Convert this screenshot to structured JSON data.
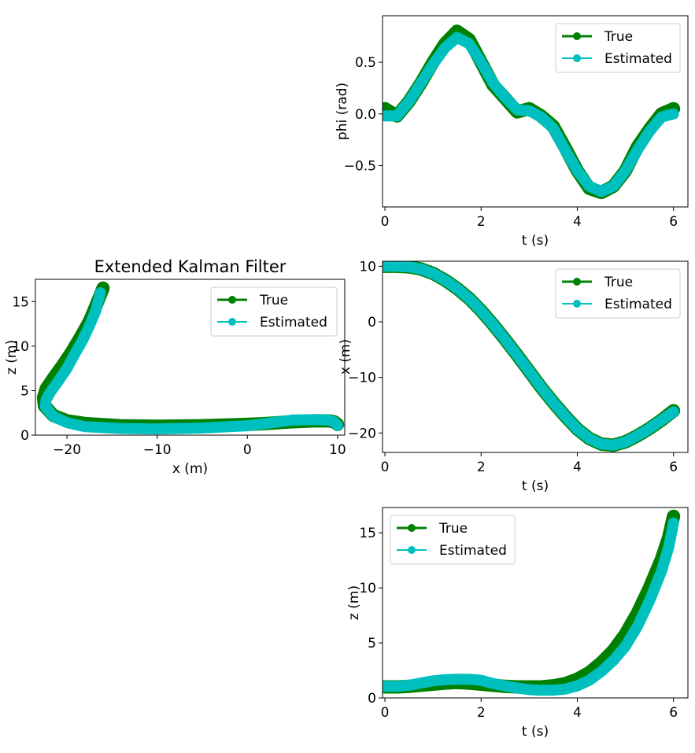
{
  "chart_data": [
    {
      "id": "trajectory",
      "type": "line",
      "title": "Extended Kalman Filter",
      "xlabel": "x (m)",
      "ylabel": "z (m)",
      "xlim": [
        -23.5,
        10.8
      ],
      "ylim": [
        0,
        17.5
      ],
      "xticks": [
        -20,
        -10,
        0,
        10
      ],
      "xtick_labels": [
        "−20",
        "−10",
        "0",
        "10"
      ],
      "yticks": [
        0,
        5,
        10,
        15
      ],
      "ytick_labels": [
        "0",
        "5",
        "10",
        "15"
      ],
      "legend": "top-right",
      "series": [
        {
          "name": "True",
          "color": "#008000",
          "x": [
            10,
            9.6,
            9,
            7.5,
            5,
            2,
            0,
            -5,
            -10,
            -14,
            -18,
            -20,
            -21.5,
            -22.5,
            -22.6,
            -22.3,
            -21.5,
            -20.5,
            -19.5,
            -18.5,
            -17.5,
            -16.8,
            -16
          ],
          "y": [
            1.2,
            1.5,
            1.6,
            1.6,
            1.5,
            1.3,
            1.2,
            1.05,
            1.0,
            1.05,
            1.3,
            1.6,
            2.2,
            3.3,
            4.2,
            5.2,
            6.4,
            7.8,
            9.3,
            11.0,
            12.8,
            14.5,
            16.5
          ]
        },
        {
          "name": "Estimated",
          "color": "#00bfbf",
          "x": [
            10,
            9.6,
            9,
            7.5,
            5,
            2,
            0,
            -5,
            -10,
            -14,
            -18,
            -20,
            -21.5,
            -22.4,
            -22.3,
            -21.8,
            -21.0,
            -20.0,
            -19.2,
            -18.3,
            -17.5,
            -16.8,
            -16.3
          ],
          "y": [
            1.1,
            1.5,
            1.7,
            1.75,
            1.7,
            1.3,
            1.05,
            0.8,
            0.7,
            0.75,
            0.95,
            1.4,
            2.1,
            3.2,
            4.0,
            4.9,
            6.0,
            7.5,
            9.0,
            10.6,
            12.3,
            14.0,
            16.0
          ]
        }
      ]
    },
    {
      "id": "phi",
      "type": "line",
      "title": "",
      "xlabel": "t (s)",
      "ylabel": "phi (rad)",
      "xlim": [
        -0.05,
        6.3
      ],
      "ylim": [
        -0.9,
        0.95
      ],
      "xticks": [
        0,
        2,
        4,
        6
      ],
      "xtick_labels": [
        "0",
        "2",
        "4",
        "6"
      ],
      "yticks": [
        -0.5,
        0,
        0.5
      ],
      "ytick_labels": [
        "−0.5",
        "0.0",
        "0.5"
      ],
      "legend": "top-right",
      "series": [
        {
          "name": "True",
          "color": "#008000",
          "x": [
            0,
            0.25,
            0.5,
            0.75,
            1,
            1.25,
            1.5,
            1.75,
            2,
            2.25,
            2.5,
            2.75,
            3,
            3.25,
            3.5,
            3.75,
            4,
            4.25,
            4.5,
            4.75,
            5,
            5.25,
            5.5,
            5.75,
            6
          ],
          "y": [
            0.05,
            -0.02,
            0.12,
            0.3,
            0.5,
            0.68,
            0.8,
            0.72,
            0.5,
            0.28,
            0.15,
            0.02,
            0.05,
            -0.02,
            -0.12,
            -0.33,
            -0.55,
            -0.72,
            -0.76,
            -0.7,
            -0.55,
            -0.32,
            -0.15,
            0.0,
            0.05
          ]
        },
        {
          "name": "Estimated",
          "color": "#00bfbf",
          "x": [
            0,
            0.25,
            0.5,
            0.75,
            1,
            1.25,
            1.5,
            1.75,
            2,
            2.25,
            2.5,
            2.75,
            3,
            3.25,
            3.5,
            3.75,
            4,
            4.25,
            4.5,
            4.75,
            5,
            5.25,
            5.5,
            5.75,
            6
          ],
          "y": [
            -0.02,
            -0.02,
            0.12,
            0.3,
            0.48,
            0.64,
            0.74,
            0.68,
            0.5,
            0.3,
            0.16,
            0.04,
            0.03,
            -0.03,
            -0.14,
            -0.35,
            -0.55,
            -0.7,
            -0.75,
            -0.7,
            -0.55,
            -0.35,
            -0.17,
            -0.03,
            0.0
          ]
        }
      ]
    },
    {
      "id": "x",
      "type": "line",
      "title": "",
      "xlabel": "t (s)",
      "ylabel": "x (m)",
      "xlim": [
        -0.05,
        6.3
      ],
      "ylim": [
        -23.5,
        10.9
      ],
      "xticks": [
        0,
        2,
        4,
        6
      ],
      "xtick_labels": [
        "0",
        "2",
        "4",
        "6"
      ],
      "yticks": [
        -20,
        -10,
        0,
        10
      ],
      "ytick_labels": [
        "−20",
        "−10",
        "0",
        "10"
      ],
      "legend": "top-right",
      "series": [
        {
          "name": "True",
          "color": "#008000",
          "x": [
            0,
            0.25,
            0.5,
            0.75,
            1,
            1.25,
            1.5,
            1.75,
            2,
            2.25,
            2.5,
            2.75,
            3,
            3.25,
            3.5,
            3.75,
            4,
            4.25,
            4.5,
            4.75,
            5,
            5.25,
            5.5,
            5.75,
            6
          ],
          "y": [
            10,
            10,
            9.9,
            9.5,
            8.7,
            7.5,
            6.0,
            4.2,
            2.0,
            -0.5,
            -3.2,
            -6.0,
            -8.9,
            -11.8,
            -14.5,
            -17.0,
            -19.3,
            -21.0,
            -22.0,
            -22.2,
            -21.6,
            -20.5,
            -19.2,
            -17.7,
            -16.0
          ]
        },
        {
          "name": "Estimated",
          "color": "#00bfbf",
          "x": [
            0,
            0.25,
            0.5,
            0.75,
            1,
            1.25,
            1.5,
            1.75,
            2,
            2.25,
            2.5,
            2.75,
            3,
            3.25,
            3.5,
            3.75,
            4,
            4.25,
            4.5,
            4.75,
            5,
            5.25,
            5.5,
            5.75,
            6
          ],
          "y": [
            10,
            10,
            9.9,
            9.5,
            8.7,
            7.5,
            6.0,
            4.2,
            2.0,
            -0.5,
            -3.2,
            -6.0,
            -8.9,
            -11.8,
            -14.5,
            -17.0,
            -19.3,
            -21.0,
            -22.0,
            -22.2,
            -21.6,
            -20.5,
            -19.2,
            -17.7,
            -16.2
          ]
        }
      ]
    },
    {
      "id": "z",
      "type": "line",
      "title": "",
      "xlabel": "t (s)",
      "ylabel": "z (m)",
      "xlim": [
        -0.05,
        6.3
      ],
      "ylim": [
        0,
        17.3
      ],
      "xticks": [
        0,
        2,
        4,
        6
      ],
      "xtick_labels": [
        "0",
        "2",
        "4",
        "6"
      ],
      "yticks": [
        0,
        5,
        10,
        15
      ],
      "ytick_labels": [
        "0",
        "5",
        "10",
        "15"
      ],
      "legend": "top-left",
      "series": [
        {
          "name": "True",
          "color": "#008000",
          "x": [
            0,
            0.25,
            0.5,
            0.75,
            1,
            1.25,
            1.5,
            1.75,
            2,
            2.25,
            2.5,
            2.75,
            3,
            3.25,
            3.5,
            3.75,
            4,
            4.25,
            4.5,
            4.75,
            5,
            5.25,
            5.5,
            5.75,
            5.9,
            6
          ],
          "y": [
            1.0,
            1.0,
            1.05,
            1.15,
            1.25,
            1.35,
            1.4,
            1.35,
            1.25,
            1.15,
            1.05,
            1.0,
            1.0,
            1.0,
            1.1,
            1.3,
            1.7,
            2.3,
            3.2,
            4.3,
            5.8,
            7.7,
            10.0,
            12.6,
            14.6,
            16.5
          ]
        },
        {
          "name": "Estimated",
          "color": "#00bfbf",
          "x": [
            0,
            0.25,
            0.5,
            0.75,
            1,
            1.25,
            1.5,
            1.75,
            2,
            2.25,
            2.5,
            2.75,
            3,
            3.25,
            3.5,
            3.75,
            4,
            4.25,
            4.5,
            4.75,
            5,
            5.25,
            5.5,
            5.75,
            5.9,
            6
          ],
          "y": [
            1.05,
            1.05,
            1.15,
            1.35,
            1.55,
            1.65,
            1.7,
            1.7,
            1.6,
            1.3,
            1.1,
            0.9,
            0.75,
            0.7,
            0.7,
            0.8,
            1.1,
            1.6,
            2.4,
            3.4,
            4.7,
            6.5,
            8.8,
            11.5,
            13.7,
            15.9
          ]
        }
      ]
    }
  ]
}
